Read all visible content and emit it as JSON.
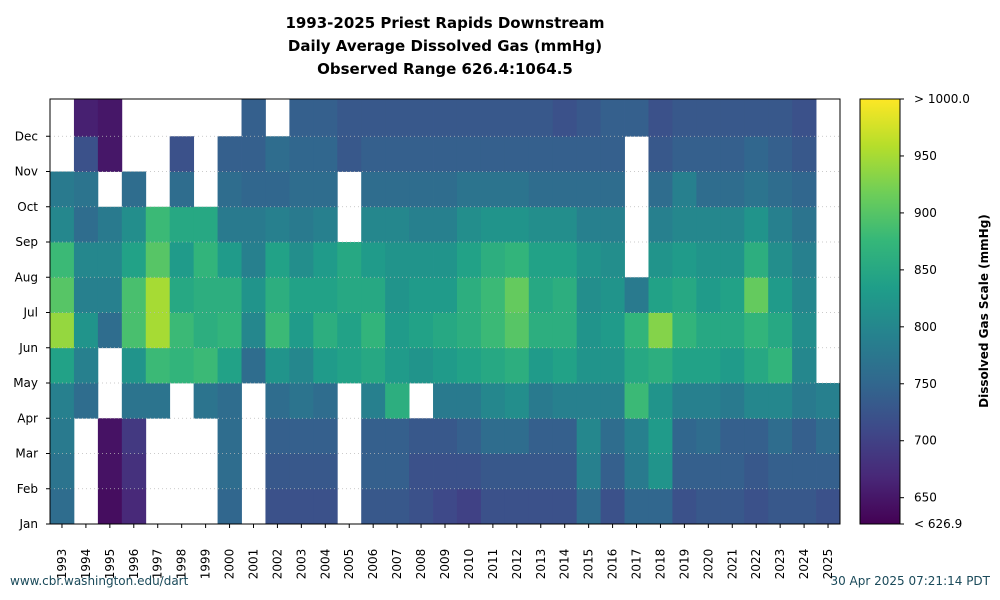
{
  "chart_data": {
    "type": "heatmap",
    "title_lines": [
      "1993-2025 Priest Rapids Downstream",
      "Daily Average Dissolved Gas (mmHg)",
      "Observed Range 626.4:1064.5"
    ],
    "x_categories": [
      "1993",
      "1994",
      "1995",
      "1996",
      "1997",
      "1998",
      "1999",
      "2000",
      "2001",
      "2002",
      "2003",
      "2004",
      "2005",
      "2006",
      "2007",
      "2008",
      "2009",
      "2010",
      "2011",
      "2012",
      "2013",
      "2014",
      "2015",
      "2016",
      "2017",
      "2018",
      "2019",
      "2020",
      "2021",
      "2022",
      "2023",
      "2024",
      "2025"
    ],
    "y_categories": [
      "Jan",
      "Feb",
      "Mar",
      "Apr",
      "May",
      "Jun",
      "Jul",
      "Aug",
      "Sep",
      "Oct",
      "Nov",
      "Dec"
    ],
    "colorbar": {
      "label": "Dissolved Gas Scale (mmHg)",
      "min": 626.9,
      "max": 1000.0,
      "ticks": [
        "< 626.9",
        "650",
        "700",
        "750",
        "800",
        "850",
        "900",
        "950",
        "> 1000.0"
      ],
      "tick_values": [
        626.9,
        650,
        700,
        750,
        800,
        850,
        900,
        950,
        1000
      ],
      "colormap": "viridis",
      "colors": [
        "#440154",
        "#482878",
        "#3e4989",
        "#31688e",
        "#26828e",
        "#1f9e89",
        "#35b779",
        "#6ece58",
        "#b5de2b",
        "#fde725"
      ]
    },
    "monthly_values": [
      [
        760,
        770,
        780,
        790,
        840,
        940,
        900,
        880,
        800,
        780,
        null,
        null
      ],
      [
        null,
        null,
        null,
        760,
        790,
        820,
        790,
        800,
        760,
        770,
        720,
        660
      ],
      [
        640,
        645,
        645,
        null,
        null,
        760,
        790,
        800,
        780,
        null,
        650,
        650
      ],
      [
        670,
        680,
        690,
        770,
        820,
        890,
        890,
        840,
        810,
        760,
        null,
        null
      ],
      [
        null,
        null,
        null,
        770,
        880,
        950,
        950,
        900,
        880,
        null,
        null,
        null
      ],
      [
        null,
        null,
        null,
        null,
        870,
        880,
        850,
        830,
        850,
        760,
        720,
        null
      ],
      [
        null,
        null,
        null,
        770,
        880,
        860,
        860,
        870,
        850,
        null,
        null,
        null
      ],
      [
        750,
        760,
        760,
        760,
        840,
        870,
        860,
        830,
        780,
        760,
        740,
        null
      ],
      [
        null,
        null,
        null,
        null,
        760,
        800,
        820,
        790,
        780,
        750,
        740,
        740
      ],
      [
        720,
        730,
        740,
        760,
        820,
        880,
        860,
        840,
        790,
        750,
        760,
        null
      ],
      [
        720,
        730,
        740,
        770,
        800,
        830,
        840,
        810,
        780,
        760,
        750,
        740
      ],
      [
        720,
        730,
        740,
        760,
        830,
        860,
        840,
        830,
        790,
        760,
        750,
        740
      ],
      [
        null,
        null,
        null,
        null,
        840,
        840,
        850,
        850,
        null,
        null,
        730,
        730
      ],
      [
        730,
        740,
        740,
        790,
        850,
        870,
        850,
        830,
        800,
        760,
        740,
        730
      ],
      [
        730,
        740,
        740,
        860,
        830,
        830,
        820,
        820,
        800,
        760,
        740,
        730
      ],
      [
        720,
        720,
        730,
        null,
        820,
        840,
        830,
        820,
        790,
        760,
        740,
        730
      ],
      [
        710,
        720,
        730,
        780,
        830,
        850,
        830,
        820,
        790,
        760,
        740,
        730
      ],
      [
        700,
        720,
        740,
        780,
        840,
        860,
        860,
        840,
        810,
        770,
        740,
        730
      ],
      [
        720,
        730,
        760,
        800,
        850,
        880,
        880,
        860,
        820,
        770,
        740,
        730
      ],
      [
        720,
        730,
        760,
        810,
        860,
        900,
        910,
        870,
        820,
        770,
        740,
        730
      ],
      [
        720,
        730,
        740,
        780,
        830,
        860,
        850,
        840,
        810,
        760,
        740,
        730
      ],
      [
        720,
        730,
        740,
        790,
        840,
        860,
        860,
        840,
        810,
        760,
        740,
        720
      ],
      [
        760,
        790,
        800,
        790,
        820,
        820,
        810,
        820,
        790,
        760,
        740,
        730
      ],
      [
        720,
        740,
        760,
        790,
        820,
        830,
        820,
        810,
        790,
        760,
        740,
        740
      ],
      [
        750,
        780,
        790,
        880,
        850,
        870,
        780,
        null,
        null,
        null,
        null,
        740
      ],
      [
        750,
        820,
        830,
        820,
        860,
        930,
        840,
        820,
        790,
        760,
        730,
        720
      ],
      [
        720,
        740,
        750,
        790,
        840,
        870,
        850,
        830,
        800,
        790,
        740,
        730
      ],
      [
        730,
        740,
        760,
        790,
        840,
        850,
        830,
        820,
        800,
        760,
        740,
        730
      ],
      [
        730,
        740,
        740,
        780,
        830,
        850,
        840,
        820,
        800,
        760,
        740,
        730
      ],
      [
        720,
        730,
        740,
        800,
        850,
        870,
        910,
        860,
        820,
        770,
        750,
        730
      ],
      [
        730,
        740,
        760,
        800,
        870,
        850,
        830,
        810,
        790,
        760,
        740,
        730
      ],
      [
        730,
        740,
        740,
        780,
        800,
        810,
        800,
        790,
        770,
        750,
        730,
        720
      ],
      [
        720,
        740,
        760,
        790,
        null,
        null,
        null,
        null,
        null,
        null,
        null,
        null
      ]
    ]
  },
  "footer": {
    "left": "www.cbr.washington.edu/dart",
    "right": "30 Apr 2025 07:21:14 PDT"
  }
}
